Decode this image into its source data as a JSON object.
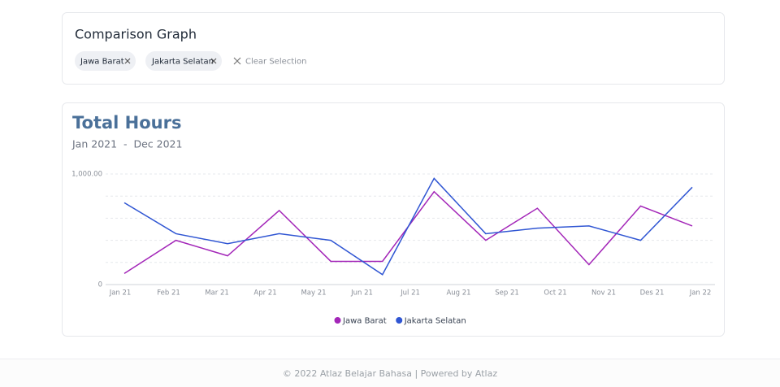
{
  "header": {
    "title": "Comparison Graph",
    "chips": [
      "Jawa Barat",
      "Jakarta Selatan"
    ],
    "clear": "Clear Selection"
  },
  "chart_data": {
    "type": "line",
    "title": "Total Hours",
    "subtitle": "Jan 2021  -  Dec 2021",
    "x_labels": [
      "Jan 21",
      "Feb 21",
      "Mar 21",
      "Apr 21",
      "May 21",
      "Jun 21",
      "Jul 21",
      "Aug 21",
      "Sep 21",
      "Oct 21",
      "Nov 21",
      "Des 21",
      "Jan 22"
    ],
    "series": [
      {
        "name": "Jawa Barat",
        "color": "#a326b8",
        "values": [
          100,
          400,
          260,
          670,
          210,
          210,
          840,
          400,
          690,
          180,
          710,
          530
        ]
      },
      {
        "name": "Jakarta Selatan",
        "color": "#3056d3",
        "values": [
          740,
          460,
          370,
          460,
          400,
          90,
          960,
          460,
          510,
          530,
          400,
          880
        ]
      }
    ],
    "ylim": [
      0,
      1000
    ],
    "yticks": [
      0,
      {
        "value": 1000,
        "label": "1,000.00"
      }
    ],
    "ygrid": [
      200,
      400,
      600,
      800
    ],
    "grid": true
  },
  "footer": "© 2022 Atlaz Belajar Bahasa | Powered by Atlaz"
}
